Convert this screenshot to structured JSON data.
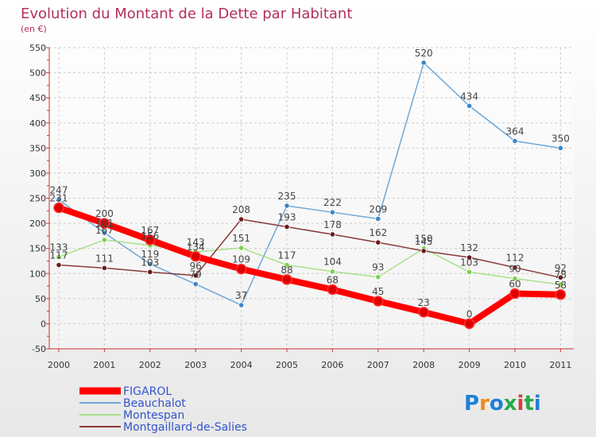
{
  "chart_data": {
    "type": "line",
    "title": "Evolution du Montant de la Dette par Habitant",
    "subtitle": "(en €)",
    "x": [
      "2000",
      "2001",
      "2002",
      "2003",
      "2004",
      "2005",
      "2006",
      "2007",
      "2008",
      "2009",
      "2010",
      "2011"
    ],
    "ylim": [
      -50,
      550
    ],
    "yticks": [
      -50,
      0,
      50,
      100,
      150,
      200,
      250,
      300,
      350,
      400,
      450,
      500,
      550
    ],
    "grid": true,
    "legend_position": "bottom-left",
    "series": [
      {
        "name": "FIGAROL",
        "color": "#ff0000",
        "marker": "#e00000",
        "emphasis": true,
        "values": [
          231,
          200,
          167,
          134,
          109,
          88,
          68,
          45,
          23,
          0,
          60,
          58
        ],
        "labels": [
          "231",
          "200",
          "167",
          "134",
          "109",
          "88",
          "68",
          "45",
          "23",
          "0",
          "60",
          "58"
        ]
      },
      {
        "name": "Beauchalot",
        "color": "#6fa8d8",
        "marker": "#3a86c8",
        "emphasis": false,
        "values": [
          247,
          181,
          119,
          79,
          37,
          235,
          222,
          209,
          520,
          434,
          364,
          350
        ],
        "labels": [
          "247",
          "181",
          "119",
          "79",
          "37",
          "235",
          "222",
          "209",
          "520",
          "434",
          "364",
          "350"
        ]
      },
      {
        "name": "Montespan",
        "color": "#a8e08a",
        "marker": "#7fd04a",
        "emphasis": false,
        "values": [
          133,
          167,
          156,
          143,
          151,
          117,
          104,
          93,
          150,
          103,
          90,
          78
        ],
        "labels": [
          "133",
          "167",
          "156",
          "143",
          "151",
          "117",
          "104",
          "93",
          "150",
          "103",
          "90",
          "78"
        ]
      },
      {
        "name": "Montgaillard-de-Salies",
        "color": "#8a3a3a",
        "marker": "#6b1a1a",
        "emphasis": false,
        "values": [
          117,
          111,
          103,
          96,
          208,
          193,
          178,
          162,
          145,
          132,
          112,
          92
        ],
        "labels": [
          "117",
          "111",
          "103",
          "96",
          "208",
          "193",
          "178",
          "162",
          "145",
          "132",
          "112",
          "92"
        ]
      }
    ]
  },
  "brand": {
    "text": "Proxiti"
  }
}
